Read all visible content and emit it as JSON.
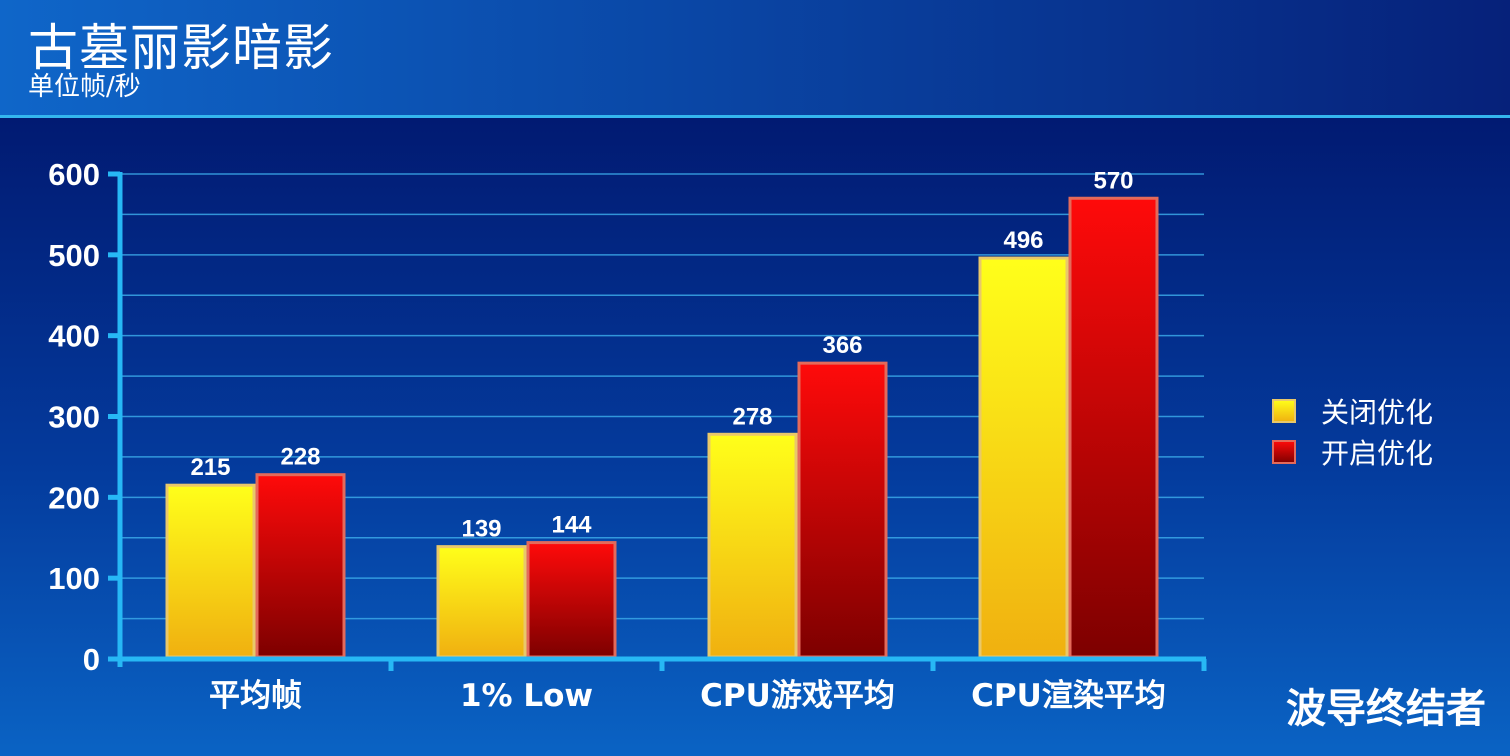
{
  "header": {
    "title": "古墓丽影暗影",
    "subtitle": "单位帧/秒"
  },
  "watermark": "波导终结者",
  "colors": {
    "series_off": "#f6e210",
    "series_on": "#d20a0a",
    "axis": "#27b8f5",
    "gridline": "#3aa8e8",
    "text": "#ffffff"
  },
  "chart_data": {
    "type": "bar",
    "title": "古墓丽影暗影",
    "subtitle": "单位帧/秒",
    "categories": [
      "平均帧",
      "1% Low",
      "CPU游戏平均",
      "CPU渲染平均"
    ],
    "series": [
      {
        "name": "关闭优化",
        "values": [
          215,
          139,
          278,
          496
        ]
      },
      {
        "name": "开启优化",
        "values": [
          228,
          144,
          366,
          570
        ]
      }
    ],
    "ylim": [
      0,
      600
    ],
    "yticks": [
      0,
      100,
      200,
      300,
      400,
      500,
      600
    ],
    "grid": true,
    "legend_position": "right",
    "data_labels": true
  }
}
